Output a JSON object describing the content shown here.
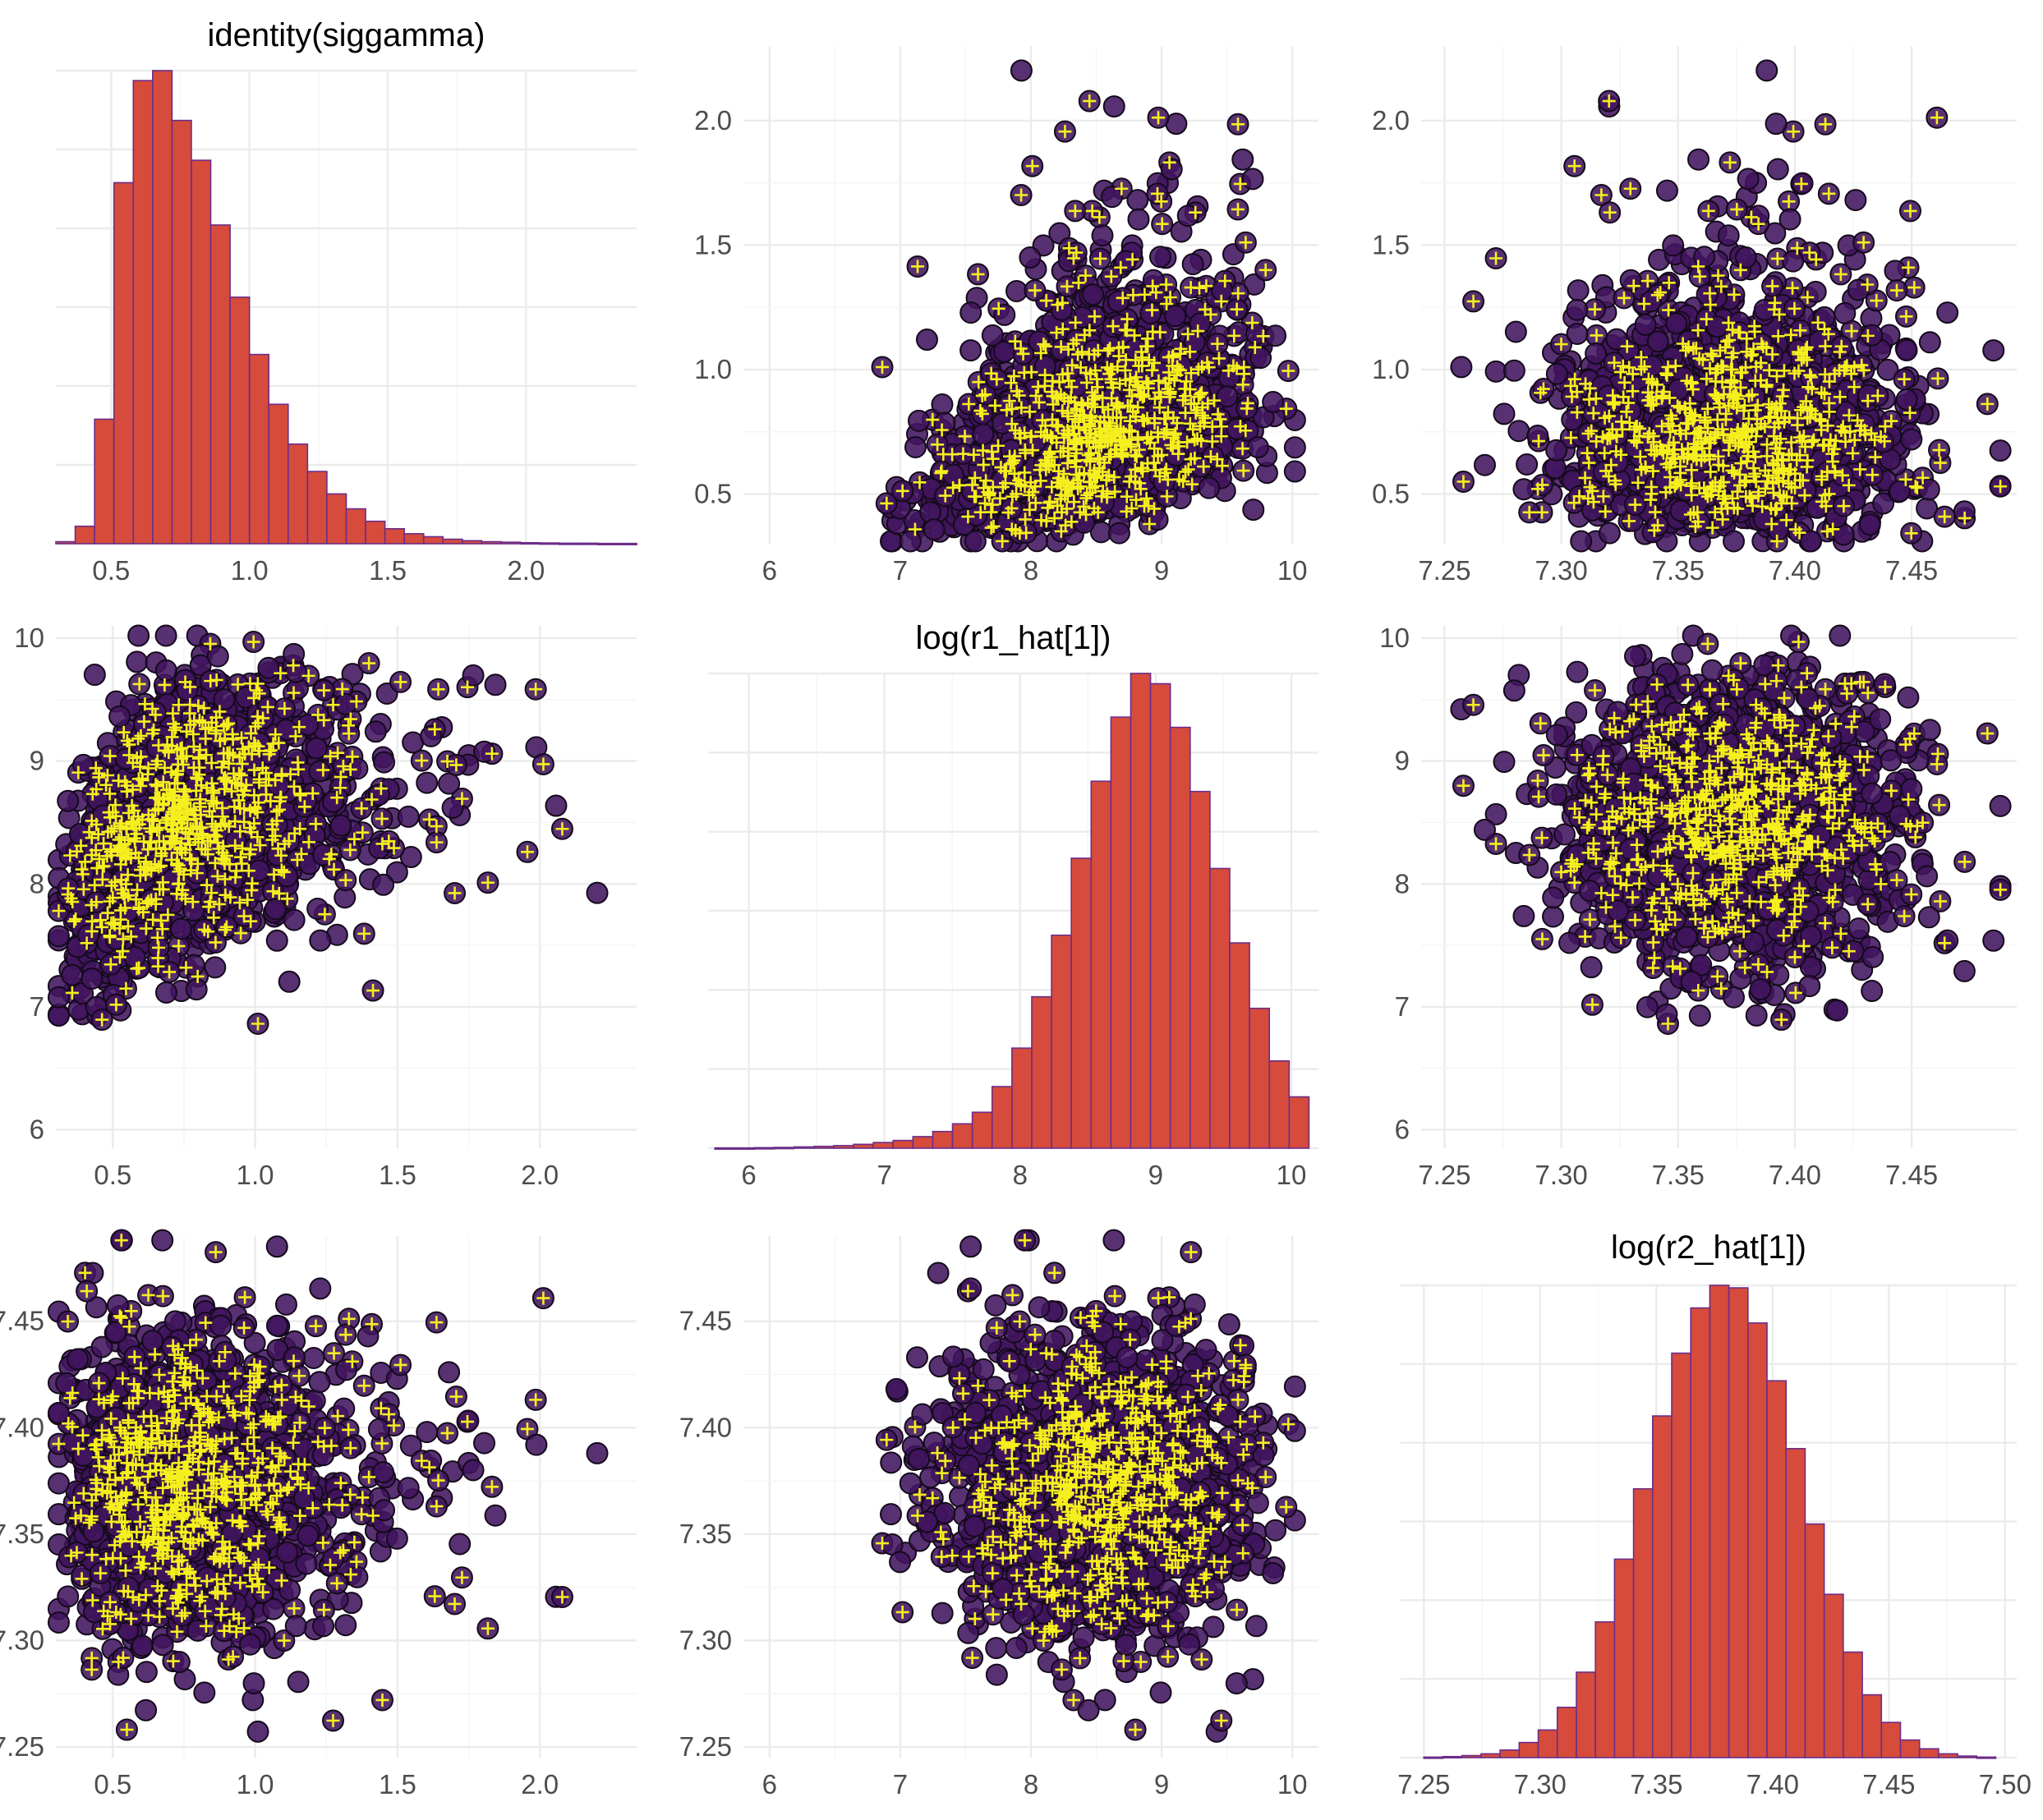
{
  "colors": {
    "hist_fill": "#d64b3b",
    "hist_edge": "#6b2d8a",
    "point_fill": "#41155e",
    "point_edge": "#150a1c",
    "marker": "#f5ef1e",
    "red_marker": "#e8211c",
    "grid_major": "#ebebeb",
    "grid_minor": "#f5f5f5",
    "tick_text": "#4d4d4d"
  },
  "chart_data": [
    {
      "id": "p11",
      "type": "histogram",
      "title": "identity(siggamma)",
      "xlim": [
        0.3,
        2.4
      ],
      "xticks": [
        0.5,
        1.0,
        1.5,
        2.0
      ],
      "xtick_labels": [
        "0.5",
        "1.0",
        "1.5",
        "2.0"
      ],
      "bin_edges_start": 0.3,
      "bin_width": 0.07,
      "counts": [
        8,
        70,
        500,
        1450,
        1860,
        1900,
        1700,
        1540,
        1280,
        990,
        760,
        560,
        400,
        290,
        200,
        140,
        90,
        60,
        40,
        28,
        18,
        12,
        8,
        6,
        4,
        3,
        2,
        2,
        1,
        1
      ]
    },
    {
      "id": "p12",
      "type": "scatter",
      "xlim": [
        5.8,
        10.2
      ],
      "ylim": [
        0.3,
        2.3
      ],
      "xticks": [
        6,
        7,
        8,
        9,
        10
      ],
      "xtick_labels": [
        "6",
        "7",
        "8",
        "9",
        "10"
      ],
      "yticks": [
        0.5,
        1.0,
        1.5,
        2.0
      ],
      "ytick_labels": [
        "0.5",
        "1.0",
        "1.5",
        "2.0"
      ],
      "x": "log(r1_hat[1])",
      "y": "identity(siggamma)"
    },
    {
      "id": "p13",
      "type": "scatter",
      "xlim": [
        7.24,
        7.495
      ],
      "ylim": [
        0.3,
        2.3
      ],
      "xticks": [
        7.25,
        7.3,
        7.35,
        7.4,
        7.45
      ],
      "xtick_labels": [
        "7.25",
        "7.30",
        "7.35",
        "7.40",
        "7.45"
      ],
      "yticks": [
        0.5,
        1.0,
        1.5,
        2.0
      ],
      "ytick_labels": [
        "0.5",
        "1.0",
        "1.5",
        "2.0"
      ],
      "x": "log(r2_hat[1])",
      "y": "identity(siggamma)"
    },
    {
      "id": "p21",
      "type": "scatter",
      "xlim": [
        0.3,
        2.34
      ],
      "ylim": [
        5.85,
        10.1
      ],
      "xticks": [
        0.5,
        1.0,
        1.5,
        2.0
      ],
      "xtick_labels": [
        "0.5",
        "1.0",
        "1.5",
        "2.0"
      ],
      "yticks": [
        6,
        7,
        8,
        9,
        10
      ],
      "ytick_labels": [
        "6",
        "7",
        "8",
        "9",
        "10"
      ],
      "x": "identity(siggamma)",
      "y": "log(r1_hat[1])"
    },
    {
      "id": "p22",
      "type": "histogram",
      "title": "log(r1_hat[1])",
      "xlim": [
        5.7,
        10.2
      ],
      "xticks": [
        6,
        7,
        8,
        9,
        10
      ],
      "xtick_labels": [
        "6",
        "7",
        "8",
        "9",
        "10"
      ],
      "bin_edges_start": 5.75,
      "bin_width": 0.146,
      "counts": [
        1,
        1,
        2,
        3,
        5,
        7,
        10,
        15,
        22,
        30,
        45,
        65,
        95,
        140,
        240,
        390,
        590,
        830,
        1130,
        1430,
        1680,
        1850,
        1810,
        1640,
        1390,
        1090,
        800,
        545,
        340,
        200
      ]
    },
    {
      "id": "p23",
      "type": "scatter",
      "xlim": [
        7.24,
        7.495
      ],
      "ylim": [
        5.85,
        10.1
      ],
      "xticks": [
        7.25,
        7.3,
        7.35,
        7.4,
        7.45
      ],
      "xtick_labels": [
        "7.25",
        "7.30",
        "7.35",
        "7.40",
        "7.45"
      ],
      "yticks": [
        6,
        7,
        8,
        9,
        10
      ],
      "ytick_labels": [
        "6",
        "7",
        "8",
        "9",
        "10"
      ],
      "x": "log(r2_hat[1])",
      "y": "log(r1_hat[1])"
    },
    {
      "id": "p31",
      "type": "scatter",
      "xlim": [
        0.3,
        2.34
      ],
      "ylim": [
        7.245,
        7.49
      ],
      "xticks": [
        0.5,
        1.0,
        1.5,
        2.0
      ],
      "xtick_labels": [
        "0.5",
        "1.0",
        "1.5",
        "2.0"
      ],
      "yticks": [
        7.25,
        7.3,
        7.35,
        7.4,
        7.45
      ],
      "ytick_labels": [
        "7.25",
        "7.30",
        "7.35",
        "7.40",
        "7.45"
      ],
      "x": "identity(siggamma)",
      "y": "log(r2_hat[1])"
    },
    {
      "id": "p32",
      "type": "scatter",
      "xlim": [
        5.8,
        10.2
      ],
      "ylim": [
        7.245,
        7.49
      ],
      "xticks": [
        6,
        7,
        8,
        9,
        10
      ],
      "xtick_labels": [
        "6",
        "7",
        "8",
        "9",
        "10"
      ],
      "yticks": [
        7.25,
        7.3,
        7.35,
        7.4,
        7.45
      ],
      "ytick_labels": [
        "7.25",
        "7.30",
        "7.35",
        "7.40",
        "7.45"
      ],
      "x": "log(r1_hat[1])",
      "y": "log(r2_hat[1])"
    },
    {
      "id": "p33",
      "type": "histogram",
      "title": "log(r2_hat[1])",
      "xlim": [
        7.24,
        7.505
      ],
      "xticks": [
        7.25,
        7.3,
        7.35,
        7.4,
        7.45,
        7.5
      ],
      "xtick_labels": [
        "7.25",
        "7.30",
        "7.35",
        "7.40",
        "7.45",
        "7.50"
      ],
      "bin_edges_start": 7.25,
      "bin_width": 0.0082,
      "counts": [
        2,
        4,
        8,
        15,
        30,
        60,
        110,
        200,
        340,
        540,
        790,
        1070,
        1360,
        1610,
        1790,
        1880,
        1870,
        1730,
        1500,
        1230,
        930,
        650,
        420,
        250,
        140,
        70,
        35,
        15,
        6,
        2
      ]
    }
  ]
}
